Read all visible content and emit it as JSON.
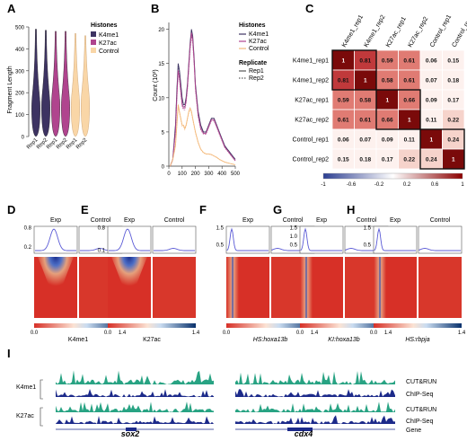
{
  "panels": {
    "a": "A",
    "b": "B",
    "c": "C",
    "d": "D",
    "e": "E",
    "f": "F",
    "g": "G",
    "h": "H",
    "i": "I"
  },
  "colors": {
    "k4me1": "#3d3362",
    "k27ac": "#b0448e",
    "control": "#f9d6a7",
    "heat_low": "#d73027",
    "heat_high": "#08306b",
    "profile": "#5b5bd6",
    "cutrun": "#28a383",
    "chipseq": "#1c2a8a"
  },
  "chart_data": [
    {
      "id": "A",
      "type": "violin",
      "ylabel": "Fragment Length",
      "yticks": [
        "0",
        "100",
        "200",
        "300",
        "400",
        "500"
      ],
      "ylim": [
        0,
        500
      ],
      "categories": [
        "Rep1",
        "Rep2",
        "Rep1",
        "Rep2",
        "Rep1",
        "Rep2"
      ],
      "groups": [
        "K4me1",
        "K4me1",
        "K27ac",
        "K27ac",
        "Control",
        "Control"
      ],
      "legend_title": "Histones",
      "legend": [
        "K4me1",
        "K27ac",
        "Control"
      ],
      "medians": [
        160,
        165,
        170,
        165,
        170,
        175
      ],
      "maxima": [
        490,
        485,
        480,
        480,
        470,
        460
      ]
    },
    {
      "id": "B",
      "type": "line",
      "ylabel": "Count (10³)",
      "xticks": [
        "0",
        "100",
        "200",
        "300",
        "400",
        "500"
      ],
      "yticks": [
        "0",
        "5",
        "10",
        "15",
        "20"
      ],
      "xlim": [
        0,
        500
      ],
      "ylim": [
        0,
        21
      ],
      "legend_title": "Histones",
      "legend": [
        "K4me1",
        "K27ac",
        "Control"
      ],
      "legend2_title": "Replicate",
      "legend2": [
        "Rep1",
        "Rep2"
      ],
      "series": [
        {
          "name": "K4me1",
          "x": [
            10,
            30,
            50,
            60,
            70,
            80,
            90,
            100,
            110,
            120,
            130,
            140,
            150,
            160,
            170,
            180,
            190,
            200,
            220,
            240,
            260,
            280,
            300,
            320,
            340,
            360,
            380,
            400,
            420,
            440,
            460,
            480,
            500
          ],
          "values": [
            0,
            1,
            6,
            11,
            15,
            14,
            12,
            10,
            9,
            9,
            10,
            12,
            15,
            18,
            20,
            19,
            16,
            12,
            8,
            6,
            5,
            5,
            6,
            7,
            7,
            6,
            5,
            4,
            3,
            2.5,
            2,
            1.5,
            1
          ]
        },
        {
          "name": "K27ac",
          "x": [
            10,
            30,
            50,
            60,
            70,
            80,
            90,
            100,
            110,
            120,
            130,
            140,
            150,
            160,
            170,
            180,
            190,
            200,
            220,
            240,
            260,
            280,
            300,
            320,
            340,
            360,
            380,
            400,
            420,
            440,
            460,
            480,
            500
          ],
          "values": [
            0,
            1,
            5,
            10,
            14,
            13,
            11,
            9,
            8.5,
            8.5,
            9.5,
            11.5,
            14.5,
            17.5,
            19.5,
            18.5,
            15.5,
            11.5,
            7.5,
            5.5,
            4.8,
            4.8,
            5.8,
            6.8,
            6.8,
            5.8,
            4.8,
            3.8,
            2.8,
            2.3,
            1.8,
            1.3,
            0.8
          ]
        },
        {
          "name": "Control",
          "x": [
            10,
            30,
            50,
            60,
            70,
            80,
            90,
            100,
            110,
            120,
            130,
            140,
            150,
            160,
            170,
            180,
            190,
            200,
            220,
            240,
            260,
            280,
            300,
            320,
            340,
            360,
            380,
            400,
            420,
            440,
            460,
            480,
            500
          ],
          "values": [
            0,
            1,
            3,
            6,
            9,
            8,
            7,
            6,
            6,
            5.5,
            6,
            7,
            8,
            8.5,
            8,
            7,
            6,
            5,
            3.5,
            2.5,
            2,
            1.8,
            1.8,
            1.7,
            1.5,
            1.3,
            1,
            0.8,
            0.6,
            0.5,
            0.4,
            0.3,
            0.2
          ]
        }
      ]
    },
    {
      "id": "C",
      "type": "heatmap",
      "labels": [
        "K4me1_rep1",
        "K4me1_rep2",
        "K27ac_rep1",
        "K27ac_rep2",
        "Control_rep1",
        "Control_rep2"
      ],
      "matrix": [
        [
          "1",
          "0.81",
          "0.59",
          "0.61",
          "0.06",
          "0.15"
        ],
        [
          "0.81",
          "1",
          "0.58",
          "0.61",
          "0.07",
          "0.18"
        ],
        [
          "0.59",
          "0.58",
          "1",
          "0.66",
          "0.09",
          "0.17"
        ],
        [
          "0.61",
          "0.61",
          "0.66",
          "1",
          "0.11",
          "0.22"
        ],
        [
          "0.06",
          "0.07",
          "0.09",
          "0.11",
          "1",
          "0.24"
        ],
        [
          "0.15",
          "0.18",
          "0.17",
          "0.22",
          "0.24",
          "1"
        ]
      ],
      "colorbar_ticks": [
        "-1",
        "-0.6",
        "-0.2",
        "0.2",
        "0.6",
        "1"
      ]
    },
    {
      "id": "D-H",
      "type": "heatmap",
      "panels": [
        {
          "name": "K4me1",
          "italic": false,
          "exp": "Exp",
          "control": "Control",
          "yticks": [
            "0.2",
            "0.8"
          ],
          "peak": 0.8,
          "cbar_ticks": [
            "0.0",
            "1.4"
          ]
        },
        {
          "name": "K27ac",
          "italic": false,
          "exp": "Exp",
          "control": "Control",
          "yticks": [
            "0.1",
            "0.8"
          ],
          "peak": 0.8,
          "cbar_ticks": [
            "0.0",
            "1.4"
          ]
        },
        {
          "name": "HS:hoxa13b",
          "italic": true,
          "exp": "Exp",
          "control": "Control",
          "yticks": [
            "0.5",
            "1.5"
          ],
          "peak": 1.5,
          "cbar_ticks": [
            "0.0",
            "1.4"
          ]
        },
        {
          "name": "KI:hoxa13b",
          "italic": true,
          "exp": "Exp",
          "control": "Control",
          "yticks": [
            "0.5",
            "1.0",
            "1.5"
          ],
          "peak": 1.5,
          "cbar_ticks": [
            "0.0",
            "1.4"
          ]
        },
        {
          "name": "HS:rbpja",
          "italic": true,
          "exp": "Exp",
          "control": "Control",
          "yticks": [
            "0.5",
            "1.5"
          ],
          "peak": 1.5,
          "cbar_ticks": [
            "0.0",
            "1.4"
          ]
        }
      ]
    },
    {
      "id": "I",
      "type": "area",
      "rows": [
        {
          "mark": "K4me1",
          "track": "CUT&RUN"
        },
        {
          "mark": "",
          "track": "ChIP-Seq"
        },
        {
          "mark": "K27ac",
          "track": "CUT&RUN"
        },
        {
          "mark": "",
          "track": "ChIP-Seq"
        }
      ],
      "gene_track": "Gene",
      "genes": [
        "sox2",
        "cdx4"
      ]
    }
  ]
}
